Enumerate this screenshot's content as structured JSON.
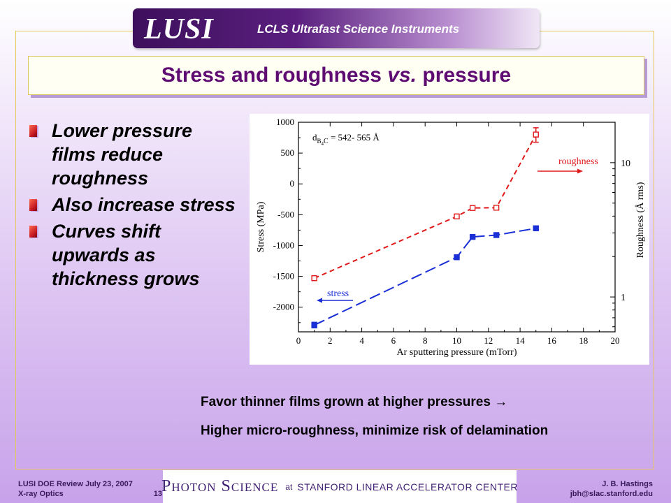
{
  "header": {
    "logo": "LUSI",
    "subtitle": "LCLS Ultrafast Science Instruments"
  },
  "slide": {
    "title_main": "Stress and roughness ",
    "title_italic": "vs.",
    "title_end": " pressure"
  },
  "bullets": [
    "Lower pressure films reduce roughness",
    "Also increase stress",
    "Curves shift upwards as thickness grows"
  ],
  "notes": {
    "line1": "Favor thinner films grown at higher pressures →",
    "line2": "Higher micro-roughness, minimize risk of delamination"
  },
  "footer": {
    "left_line1": "LUSI DOE Review July 23, 2007",
    "left_line2": "X-ray Optics",
    "page_number": "13",
    "center_main": "Photon Science",
    "center_at": "at",
    "center_org": "Stanford Linear Accelerator Center",
    "right_line1": "J. B. Hastings",
    "right_line2": "jbh@slac.stanford.edu"
  },
  "chart_data": {
    "type": "line",
    "title": "",
    "xlabel": "Ar sputtering pressure (mTorr)",
    "ylabel": "Stress (MPa)",
    "y2label": "Roughness (Å rms)",
    "xlim": [
      0,
      20
    ],
    "ylim": [
      -2400,
      1000
    ],
    "y2lim": [
      0.55,
      20
    ],
    "y2scale": "log",
    "xticks": [
      0,
      2,
      4,
      6,
      8,
      10,
      12,
      14,
      16,
      18,
      20
    ],
    "yticks": [
      -2000,
      -1500,
      -1000,
      -500,
      0,
      500,
      1000
    ],
    "y2ticks": [
      1,
      10
    ],
    "grid": false,
    "annotation": {
      "main": "d",
      "sub": "B",
      "sub2": "4",
      "tail": "C",
      "value": " = 542- 565 Å"
    },
    "series": [
      {
        "name": "stress",
        "axis": "left",
        "color": "#1a2fd6",
        "marker": "filled-square",
        "dash": "long",
        "x": [
          1,
          10,
          11,
          12.5,
          15
        ],
        "y": [
          -2290,
          -1190,
          -860,
          -830,
          -720
        ],
        "error": [
          45,
          0,
          0,
          0,
          0
        ]
      },
      {
        "name": "roughness",
        "axis": "right",
        "color": "#e01a1a",
        "marker": "open-square",
        "dash": "short",
        "x": [
          1,
          10,
          11,
          12.5,
          15
        ],
        "y": [
          1.38,
          3.98,
          4.6,
          4.62,
          16.2
        ],
        "error": [
          0,
          0,
          0,
          0,
          2
        ]
      }
    ]
  }
}
